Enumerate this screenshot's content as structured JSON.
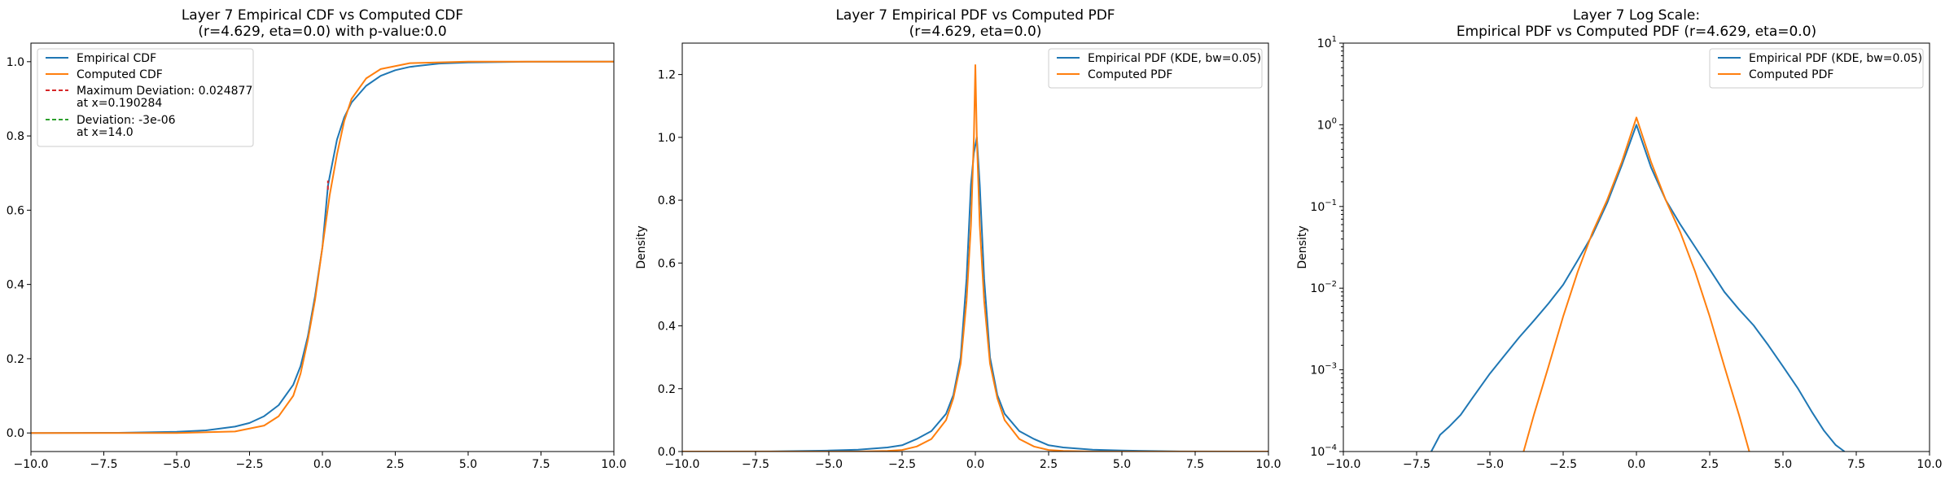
{
  "colors": {
    "empirical": "#1f77b4",
    "computed": "#ff7f0e",
    "max_dev": "#d62728",
    "dev": "#2ca02c"
  },
  "chart_data": [
    {
      "type": "line",
      "title_lines": [
        "Layer 7 Empirical CDF vs Computed CDF",
        "(r=4.629, eta=0.0) with p-value:0.0"
      ],
      "xlabel": "",
      "ylabel": "",
      "xlim": [
        -10,
        10
      ],
      "ylim": [
        -0.05,
        1.05
      ],
      "yscale": "linear",
      "xticks": [
        -10,
        -7.5,
        -5,
        -2.5,
        0,
        2.5,
        5,
        7.5,
        10
      ],
      "xtick_labels": [
        "−10.0",
        "−7.5",
        "−5.0",
        "−2.5",
        "0.0",
        "2.5",
        "5.0",
        "7.5",
        "10.0"
      ],
      "yticks": [
        0,
        0.2,
        0.4,
        0.6,
        0.8,
        1.0
      ],
      "ytick_labels": [
        "0.0",
        "0.2",
        "0.4",
        "0.6",
        "0.8",
        "1.0"
      ],
      "legend_position": "upper-left",
      "legend": [
        {
          "label": "Empirical CDF",
          "style": "solid",
          "color_key": "empirical"
        },
        {
          "label": "Computed CDF",
          "style": "solid",
          "color_key": "computed"
        },
        {
          "label": "Maximum Deviation: 0.024877",
          "label2": "at x=0.190284",
          "style": "dashed",
          "color_key": "max_dev"
        },
        {
          "label": "Deviation: -3e-06",
          "label2": "at x=14.0",
          "style": "dashed",
          "color_key": "dev"
        }
      ],
      "series": [
        {
          "name": "Empirical CDF",
          "color_key": "empirical",
          "x": [
            -10,
            -7,
            -5,
            -4,
            -3,
            -2.5,
            -2,
            -1.5,
            -1,
            -0.75,
            -0.5,
            -0.25,
            0,
            0.19,
            0.25,
            0.5,
            0.75,
            1,
            1.5,
            2,
            2.5,
            3,
            4,
            5,
            7,
            10
          ],
          "y": [
            0.0,
            0.0005,
            0.003,
            0.007,
            0.017,
            0.027,
            0.045,
            0.075,
            0.13,
            0.18,
            0.26,
            0.37,
            0.5,
            0.665,
            0.69,
            0.79,
            0.85,
            0.89,
            0.935,
            0.962,
            0.977,
            0.986,
            0.995,
            0.998,
            0.9998,
            1.0
          ]
        },
        {
          "name": "Computed CDF",
          "color_key": "computed",
          "x": [
            -10,
            -5,
            -3,
            -2,
            -1.5,
            -1,
            -0.75,
            -0.5,
            -0.25,
            0,
            0.25,
            0.5,
            0.75,
            1,
            1.5,
            2,
            3,
            5,
            10
          ],
          "y": [
            0.0,
            0.0,
            0.004,
            0.02,
            0.045,
            0.1,
            0.16,
            0.25,
            0.36,
            0.5,
            0.64,
            0.75,
            0.84,
            0.9,
            0.955,
            0.98,
            0.996,
            1.0,
            1.0
          ]
        }
      ],
      "max_deviation_marker": {
        "x": 0.190284,
        "y_from": 0.655,
        "y_to": 0.68
      }
    },
    {
      "type": "line",
      "title_lines": [
        "Layer 7 Empirical PDF vs Computed PDF",
        "(r=4.629, eta=0.0)"
      ],
      "xlabel": "",
      "ylabel": "Density",
      "xlim": [
        -10,
        10
      ],
      "ylim": [
        0,
        1.3
      ],
      "yscale": "linear",
      "xticks": [
        -10,
        -7.5,
        -5,
        -2.5,
        0,
        2.5,
        5,
        7.5,
        10
      ],
      "xtick_labels": [
        "−10.0",
        "−7.5",
        "−5.0",
        "−2.5",
        "0.0",
        "2.5",
        "5.0",
        "7.5",
        "10.0"
      ],
      "yticks": [
        0,
        0.2,
        0.4,
        0.6,
        0.8,
        1.0,
        1.2
      ],
      "ytick_labels": [
        "0.0",
        "0.2",
        "0.4",
        "0.6",
        "0.8",
        "1.0",
        "1.2"
      ],
      "legend_position": "upper-right",
      "legend": [
        {
          "label": "Empirical PDF (KDE, bw=0.05)",
          "style": "solid",
          "color_key": "empirical"
        },
        {
          "label": "Computed PDF",
          "style": "solid",
          "color_key": "computed"
        }
      ],
      "series": [
        {
          "name": "Empirical PDF (KDE, bw=0.05)",
          "color_key": "empirical",
          "x": [
            -10,
            -7,
            -5,
            -4,
            -3,
            -2.5,
            -2,
            -1.5,
            -1,
            -0.75,
            -0.5,
            -0.3,
            -0.15,
            -0.05,
            0.05,
            0.15,
            0.3,
            0.5,
            0.75,
            1,
            1.5,
            2,
            2.5,
            3,
            4,
            5,
            7,
            10
          ],
          "y": [
            0,
            0.0003,
            0.003,
            0.006,
            0.013,
            0.02,
            0.04,
            0.065,
            0.12,
            0.18,
            0.3,
            0.55,
            0.85,
            0.95,
            1.0,
            0.85,
            0.55,
            0.3,
            0.18,
            0.12,
            0.065,
            0.04,
            0.02,
            0.013,
            0.006,
            0.003,
            0.0003,
            0
          ]
        },
        {
          "name": "Computed PDF",
          "color_key": "computed",
          "x": [
            -10,
            -5,
            -4,
            -3,
            -2.5,
            -2,
            -1.5,
            -1,
            -0.75,
            -0.5,
            -0.3,
            -0.15,
            -0.05,
            0,
            0.05,
            0.15,
            0.3,
            0.5,
            0.75,
            1,
            1.5,
            2,
            2.5,
            3,
            4,
            5,
            10
          ],
          "y": [
            0,
            0,
            0.0001,
            0.002,
            0.005,
            0.016,
            0.04,
            0.1,
            0.17,
            0.28,
            0.48,
            0.72,
            1.0,
            1.23,
            1.0,
            0.72,
            0.48,
            0.28,
            0.17,
            0.1,
            0.04,
            0.016,
            0.005,
            0.002,
            0.0001,
            0,
            0
          ]
        }
      ]
    },
    {
      "type": "line",
      "title_lines": [
        "Layer 7 Log Scale:",
        "Empirical PDF vs Computed PDF (r=4.629, eta=0.0)"
      ],
      "xlabel": "",
      "ylabel": "Density",
      "xlim": [
        -10,
        10
      ],
      "ylim": [
        0.0001,
        10
      ],
      "yscale": "log",
      "xticks": [
        -10,
        -7.5,
        -5,
        -2.5,
        0,
        2.5,
        5,
        7.5,
        10
      ],
      "xtick_labels": [
        "−10.0",
        "−7.5",
        "−5.0",
        "−2.5",
        "0.0",
        "2.5",
        "5.0",
        "7.5",
        "10.0"
      ],
      "yticks": [
        0.0001,
        0.001,
        0.01,
        0.1,
        1,
        10
      ],
      "ytick_exponents": [
        "−4",
        "−3",
        "−2",
        "−1",
        "0",
        "1"
      ],
      "ytick_base": "10",
      "legend_position": "upper-right",
      "legend": [
        {
          "label": "Empirical PDF (KDE, bw=0.05)",
          "style": "solid",
          "color_key": "empirical"
        },
        {
          "label": "Computed PDF",
          "style": "solid",
          "color_key": "computed"
        }
      ],
      "series": [
        {
          "name": "Empirical PDF (KDE, bw=0.05)",
          "color_key": "empirical",
          "x": [
            -7.0,
            -6.7,
            -6.4,
            -6.0,
            -5.6,
            -5.0,
            -4.5,
            -4.0,
            -3.5,
            -3.0,
            -2.5,
            -2.0,
            -1.5,
            -1.0,
            -0.5,
            0,
            0.5,
            1.0,
            1.5,
            2.0,
            2.5,
            3.0,
            3.5,
            4.0,
            4.5,
            5.0,
            5.5,
            6.0,
            6.4,
            6.8,
            7.1
          ],
          "y": [
            0.0001,
            0.00016,
            0.0002,
            0.00028,
            0.00045,
            0.0009,
            0.0015,
            0.0025,
            0.004,
            0.0065,
            0.011,
            0.022,
            0.045,
            0.11,
            0.32,
            1.0,
            0.3,
            0.12,
            0.06,
            0.032,
            0.017,
            0.009,
            0.0055,
            0.0035,
            0.002,
            0.0011,
            0.0006,
            0.0003,
            0.00018,
            0.00012,
            0.0001
          ]
        },
        {
          "name": "Computed PDF",
          "color_key": "computed",
          "x": [
            -3.85,
            -3.5,
            -3.0,
            -2.5,
            -2.0,
            -1.5,
            -1.0,
            -0.5,
            0,
            0.5,
            1.0,
            1.5,
            2.0,
            2.5,
            3.0,
            3.5,
            3.85
          ],
          "y": [
            0.0001,
            0.00028,
            0.0011,
            0.0045,
            0.016,
            0.048,
            0.12,
            0.35,
            1.23,
            0.35,
            0.12,
            0.048,
            0.016,
            0.0045,
            0.0011,
            0.00028,
            0.0001
          ]
        }
      ]
    }
  ]
}
